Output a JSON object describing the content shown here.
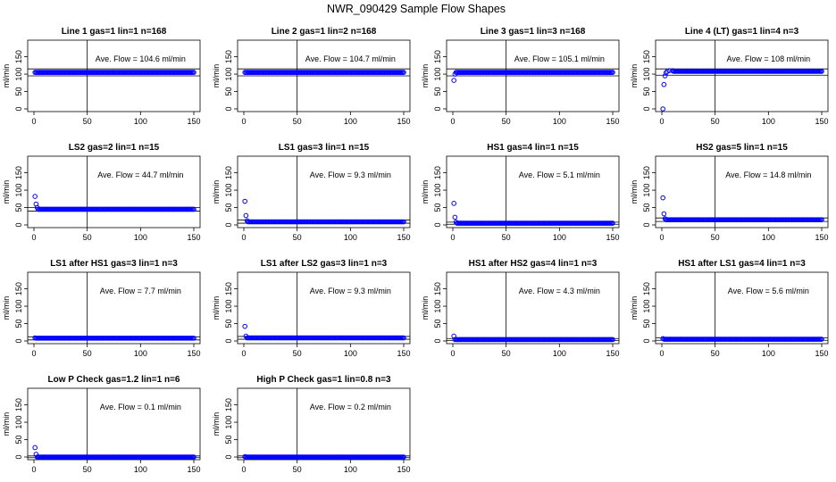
{
  "title": "NWR_090429  Sample Flow Shapes",
  "colors": {
    "points": "#0000ff",
    "axes": "#000000",
    "background": "#ffffff"
  },
  "chart_data": [
    {
      "type": "scatter",
      "title": "Line 1 gas=1 lin=1 n=168",
      "xlabel": "",
      "ylabel": "ml/min",
      "xlim": [
        0,
        150
      ],
      "ylim": [
        0,
        190
      ],
      "xticks": [
        "0",
        "50",
        "100",
        "150"
      ],
      "yticks": [
        "0",
        "50",
        "100",
        "150"
      ],
      "vline": 50,
      "hlines": [
        95,
        115
      ],
      "annotation": "Ave. Flow =  104.6  ml/min",
      "start_points": [],
      "steady_value": 105
    },
    {
      "type": "scatter",
      "title": "Line 2 gas=1 lin=2 n=168",
      "xlabel": "",
      "ylabel": "ml/min",
      "xlim": [
        0,
        150
      ],
      "ylim": [
        0,
        190
      ],
      "xticks": [
        "0",
        "50",
        "100",
        "150"
      ],
      "yticks": [
        "0",
        "50",
        "100",
        "150"
      ],
      "vline": 50,
      "hlines": [
        95,
        115
      ],
      "annotation": "Ave. Flow =  104.7  ml/min",
      "start_points": [],
      "steady_value": 105
    },
    {
      "type": "scatter",
      "title": "Line 3 gas=1 lin=3 n=168",
      "xlabel": "",
      "ylabel": "ml/min",
      "xlim": [
        0,
        150
      ],
      "ylim": [
        0,
        190
      ],
      "xticks": [
        "0",
        "50",
        "100",
        "150"
      ],
      "yticks": [
        "0",
        "50",
        "100",
        "150"
      ],
      "vline": 50,
      "hlines": [
        95,
        115
      ],
      "annotation": "Ave. Flow =  105.1  ml/min",
      "start_points": [
        [
          1,
          82
        ],
        [
          2,
          100
        ]
      ],
      "steady_value": 105
    },
    {
      "type": "scatter",
      "title": "Line 4 (LT) gas=1 lin=4 n=3",
      "xlabel": "",
      "ylabel": "ml/min",
      "xlim": [
        0,
        150
      ],
      "ylim": [
        0,
        190
      ],
      "xticks": [
        "0",
        "50",
        "100",
        "150"
      ],
      "yticks": [
        "0",
        "50",
        "100",
        "150"
      ],
      "vline": 50,
      "hlines": [
        97,
        115
      ],
      "annotation": "Ave. Flow =  108  ml/min",
      "start_points": [
        [
          1,
          0
        ],
        [
          2,
          70
        ],
        [
          3,
          95
        ],
        [
          4,
          104
        ],
        [
          5,
          108
        ],
        [
          7,
          110
        ],
        [
          10,
          110
        ]
      ],
      "steady_value": 108
    },
    {
      "type": "scatter",
      "title": "LS2 gas=2 lin=1 n=15",
      "xlabel": "",
      "ylabel": "ml/min",
      "xlim": [
        0,
        150
      ],
      "ylim": [
        0,
        190
      ],
      "xticks": [
        "0",
        "50",
        "100",
        "150"
      ],
      "yticks": [
        "0",
        "50",
        "100",
        "150"
      ],
      "vline": 50,
      "hlines": [
        40,
        50
      ],
      "annotation": "Ave. Flow =  44.7  ml/min",
      "start_points": [
        [
          1,
          82
        ],
        [
          2,
          60
        ],
        [
          3,
          50
        ]
      ],
      "steady_value": 45
    },
    {
      "type": "scatter",
      "title": "LS1 gas=3 lin=1 n=15",
      "xlabel": "",
      "ylabel": "ml/min",
      "xlim": [
        0,
        150
      ],
      "ylim": [
        0,
        190
      ],
      "xticks": [
        "0",
        "50",
        "100",
        "150"
      ],
      "yticks": [
        "0",
        "50",
        "100",
        "150"
      ],
      "vline": 50,
      "hlines": [
        5,
        14
      ],
      "annotation": "Ave. Flow =  9.3  ml/min",
      "start_points": [
        [
          1,
          68
        ],
        [
          2,
          27
        ],
        [
          3,
          12
        ]
      ],
      "steady_value": 9
    },
    {
      "type": "scatter",
      "title": "HS1 gas=4 lin=1 n=15",
      "xlabel": "",
      "ylabel": "ml/min",
      "xlim": [
        0,
        150
      ],
      "ylim": [
        0,
        190
      ],
      "xticks": [
        "0",
        "50",
        "100",
        "150"
      ],
      "yticks": [
        "0",
        "50",
        "100",
        "150"
      ],
      "vline": 50,
      "hlines": [
        2,
        8
      ],
      "annotation": "Ave. Flow =  5.1  ml/min",
      "start_points": [
        [
          1,
          62
        ],
        [
          2,
          22
        ],
        [
          3,
          8
        ]
      ],
      "steady_value": 5
    },
    {
      "type": "scatter",
      "title": "HS2 gas=5 lin=1 n=15",
      "xlabel": "",
      "ylabel": "ml/min",
      "xlim": [
        0,
        150
      ],
      "ylim": [
        0,
        190
      ],
      "xticks": [
        "0",
        "50",
        "100",
        "150"
      ],
      "yticks": [
        "0",
        "50",
        "100",
        "150"
      ],
      "vline": 50,
      "hlines": [
        10,
        20
      ],
      "annotation": "Ave. Flow =  14.8  ml/min",
      "start_points": [
        [
          1,
          78
        ],
        [
          2,
          32
        ],
        [
          3,
          18
        ]
      ],
      "steady_value": 15
    },
    {
      "type": "scatter",
      "title": "LS1 after HS1 gas=3 lin=1 n=3",
      "xlabel": "",
      "ylabel": "ml/min",
      "xlim": [
        0,
        150
      ],
      "ylim": [
        0,
        190
      ],
      "xticks": [
        "0",
        "50",
        "100",
        "150"
      ],
      "yticks": [
        "0",
        "50",
        "100",
        "150"
      ],
      "vline": 50,
      "hlines": [
        3,
        12
      ],
      "annotation": "Ave. Flow =  7.7  ml/min",
      "start_points": [
        [
          1,
          9
        ]
      ],
      "steady_value": 8
    },
    {
      "type": "scatter",
      "title": "LS1 after LS2 gas=3 lin=1 n=3",
      "xlabel": "",
      "ylabel": "ml/min",
      "xlim": [
        0,
        150
      ],
      "ylim": [
        0,
        190
      ],
      "xticks": [
        "0",
        "50",
        "100",
        "150"
      ],
      "yticks": [
        "0",
        "50",
        "100",
        "150"
      ],
      "vline": 50,
      "hlines": [
        5,
        13
      ],
      "annotation": "Ave. Flow =  9.3  ml/min",
      "start_points": [
        [
          1,
          42
        ],
        [
          2,
          14
        ]
      ],
      "steady_value": 9
    },
    {
      "type": "scatter",
      "title": "HS1 after HS2 gas=4 lin=1 n=3",
      "xlabel": "",
      "ylabel": "ml/min",
      "xlim": [
        0,
        150
      ],
      "ylim": [
        0,
        190
      ],
      "xticks": [
        "0",
        "50",
        "100",
        "150"
      ],
      "yticks": [
        "0",
        "50",
        "100",
        "150"
      ],
      "vline": 50,
      "hlines": [
        1,
        7
      ],
      "annotation": "Ave. Flow =  4.3  ml/min",
      "start_points": [
        [
          1,
          14
        ]
      ],
      "steady_value": 4
    },
    {
      "type": "scatter",
      "title": "HS1 after LS1 gas=4 lin=1 n=3",
      "xlabel": "",
      "ylabel": "ml/min",
      "xlim": [
        0,
        150
      ],
      "ylim": [
        0,
        190
      ],
      "xticks": [
        "0",
        "50",
        "100",
        "150"
      ],
      "yticks": [
        "0",
        "50",
        "100",
        "150"
      ],
      "vline": 50,
      "hlines": [
        2,
        9
      ],
      "annotation": "Ave. Flow =  5.6  ml/min",
      "start_points": [
        [
          1,
          7
        ]
      ],
      "steady_value": 5
    },
    {
      "type": "scatter",
      "title": "Low P Check gas=1.2 lin=1 n=6",
      "xlabel": "",
      "ylabel": "ml/min",
      "xlim": [
        0,
        150
      ],
      "ylim": [
        0,
        190
      ],
      "xticks": [
        "0",
        "50",
        "100",
        "150"
      ],
      "yticks": [
        "0",
        "50",
        "100",
        "150"
      ],
      "vline": 50,
      "hlines": [
        -2,
        3
      ],
      "annotation": "Ave. Flow =  0.1  ml/min",
      "start_points": [
        [
          1,
          27
        ],
        [
          2,
          8
        ]
      ],
      "steady_value": 0
    },
    {
      "type": "scatter",
      "title": "High P Check gas=1 lin=0.8 n=3",
      "xlabel": "",
      "ylabel": "ml/min",
      "xlim": [
        0,
        150
      ],
      "ylim": [
        0,
        190
      ],
      "xticks": [
        "0",
        "50",
        "100",
        "150"
      ],
      "yticks": [
        "0",
        "50",
        "100",
        "150"
      ],
      "vline": 50,
      "hlines": [
        -2,
        3
      ],
      "annotation": "Ave. Flow =  0.2  ml/min",
      "start_points": [
        [
          1,
          1
        ]
      ],
      "steady_value": 0
    }
  ]
}
